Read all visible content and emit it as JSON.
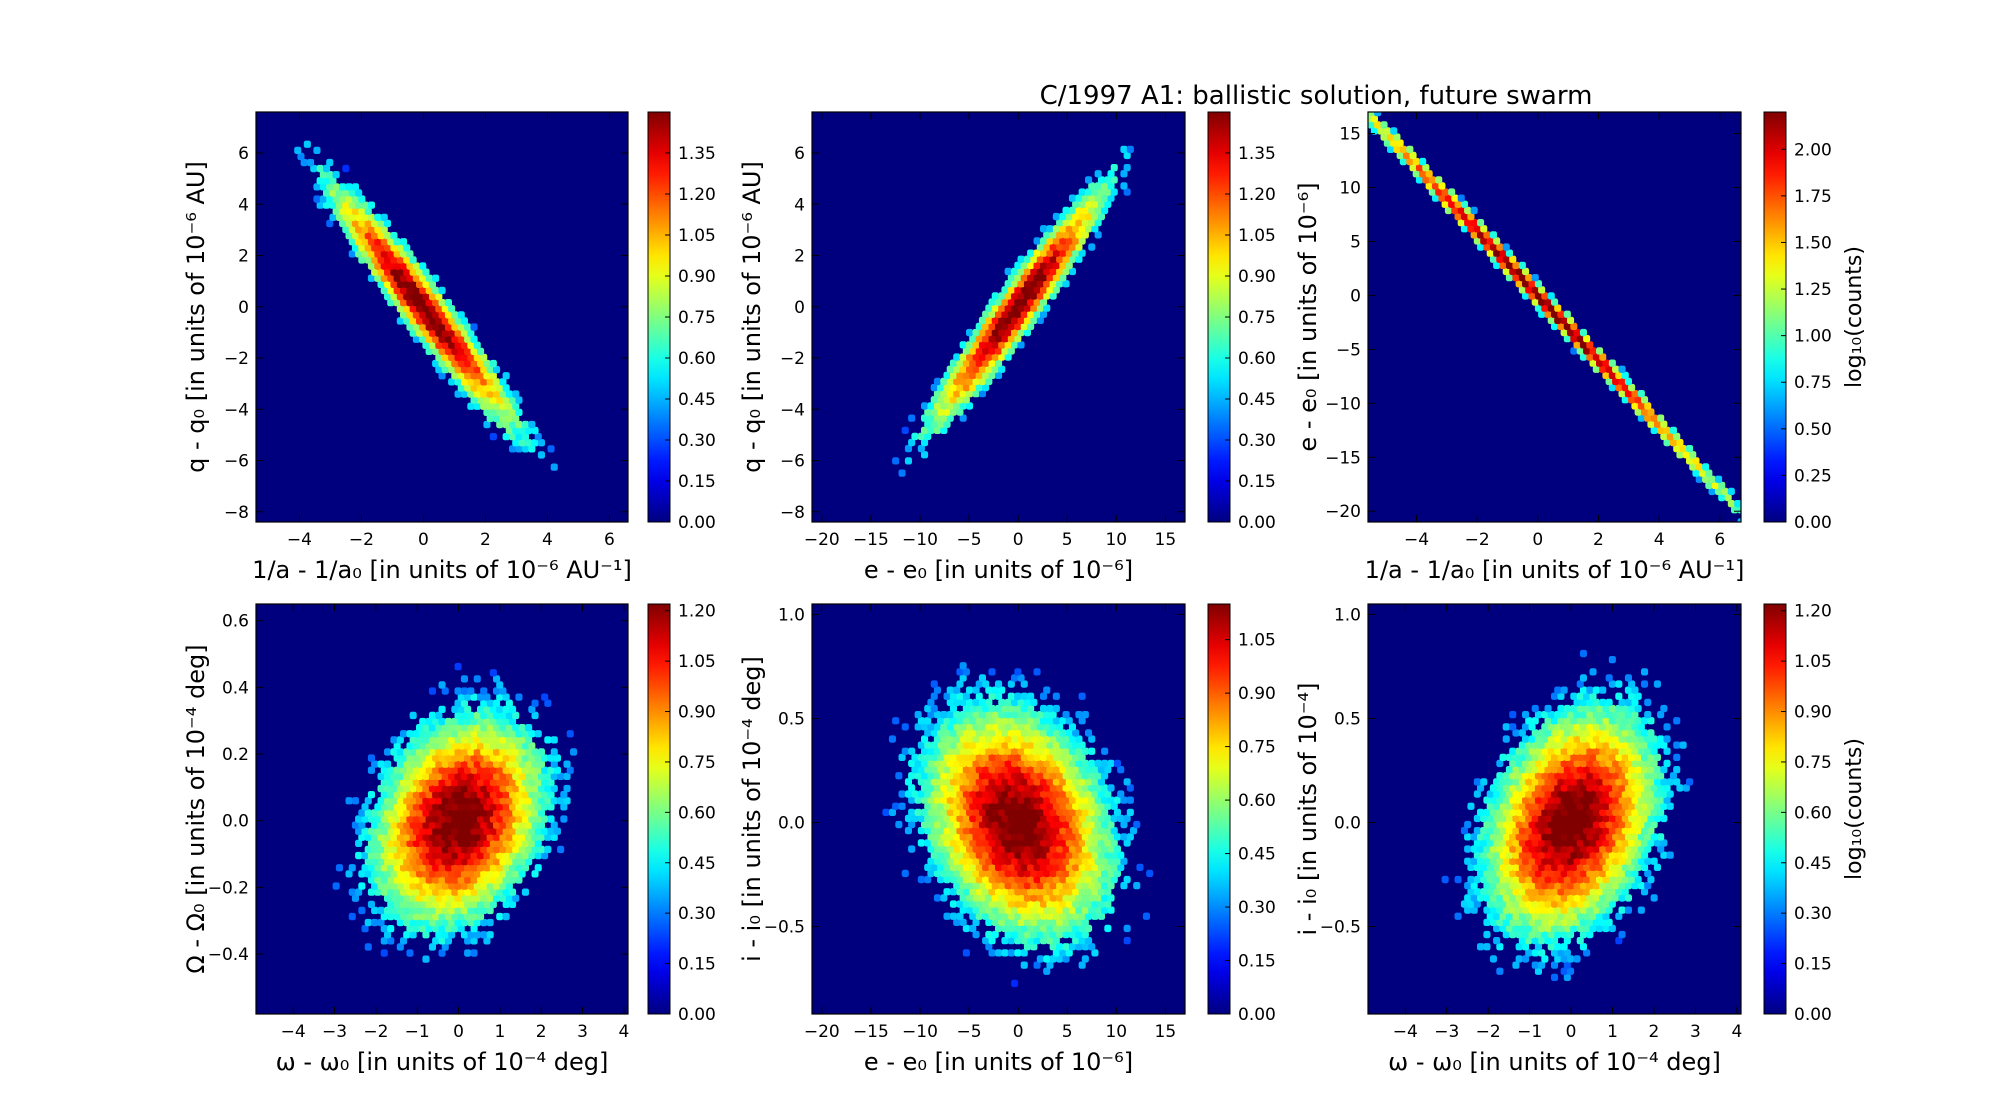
{
  "figure": {
    "title": "C/1997 A1:  ballistic solution, future swarm",
    "background": "#ffffff",
    "panel_background": "#00007f",
    "colormap": "jet"
  },
  "chart_data": [
    {
      "type": "heatmap",
      "bin_style": "hexbin",
      "xlabel": "1/a - 1/a₀ [in units of 10⁻⁶ AU⁻¹]",
      "ylabel": "q - q₀ [in units of 10⁻⁶ AU]",
      "xlim": [
        -5.4,
        6.6
      ],
      "ylim": [
        -8.4,
        7.6
      ],
      "xticks": [
        "−4",
        "−2",
        "0",
        "2",
        "4",
        "6"
      ],
      "xtick_values": [
        -4,
        -2,
        0,
        2,
        4,
        6
      ],
      "yticks": [
        "−8",
        "−6",
        "−4",
        "−2",
        "0",
        "2",
        "4",
        "6"
      ],
      "ytick_values": [
        -8,
        -6,
        -4,
        -2,
        0,
        2,
        4,
        6
      ],
      "distribution": {
        "center": [
          0,
          0
        ],
        "sigma": [
          1.6,
          2.5
        ],
        "correlation": -0.96
      },
      "colorbar": {
        "label": "",
        "range": [
          0.0,
          1.5
        ],
        "ticks": [
          "0.00",
          "0.15",
          "0.30",
          "0.45",
          "0.60",
          "0.75",
          "0.90",
          "1.05",
          "1.20",
          "1.35"
        ]
      }
    },
    {
      "type": "heatmap",
      "bin_style": "hexbin",
      "xlabel": "e - e₀ [in units of 10⁻⁶]",
      "ylabel": "q - q₀ [in units of 10⁻⁶ AU]",
      "xlim": [
        -21,
        17
      ],
      "ylim": [
        -8.4,
        7.6
      ],
      "xticks": [
        "−20",
        "−15",
        "−10",
        "−5",
        "0",
        "5",
        "10",
        "15"
      ],
      "xtick_values": [
        -20,
        -15,
        -10,
        -5,
        0,
        5,
        10,
        15
      ],
      "yticks": [
        "−8",
        "−6",
        "−4",
        "−2",
        "0",
        "2",
        "4",
        "6"
      ],
      "ytick_values": [
        -8,
        -6,
        -4,
        -2,
        0,
        2,
        4,
        6
      ],
      "distribution": {
        "center": [
          0,
          0
        ],
        "sigma": [
          4.8,
          2.5
        ],
        "correlation": 0.96
      },
      "colorbar": {
        "label": "",
        "range": [
          0.0,
          1.5
        ],
        "ticks": [
          "0.00",
          "0.15",
          "0.30",
          "0.45",
          "0.60",
          "0.75",
          "0.90",
          "1.05",
          "1.20",
          "1.35"
        ]
      }
    },
    {
      "type": "heatmap",
      "bin_style": "hexbin",
      "xlabel": "1/a - 1/a₀ [in units of 10⁻⁶ AU⁻¹]",
      "ylabel": "e - e₀ [in units of 10⁻⁶]",
      "xlim": [
        -5.6,
        6.7
      ],
      "ylim": [
        -21,
        17
      ],
      "xticks": [
        "−4",
        "−2",
        "0",
        "2",
        "4",
        "6"
      ],
      "xtick_values": [
        -4,
        -2,
        0,
        2,
        4,
        6
      ],
      "yticks": [
        "−20",
        "−15",
        "−10",
        "−5",
        "0",
        "5",
        "10",
        "15"
      ],
      "ytick_values": [
        -20,
        -15,
        -10,
        -5,
        0,
        5,
        10,
        15
      ],
      "distribution": {
        "center": [
          0,
          0
        ],
        "sigma": [
          1.6,
          4.8
        ],
        "correlation": -0.9995
      },
      "colorbar": {
        "label": "log₁₀(counts)",
        "range": [
          0.0,
          2.2
        ],
        "ticks": [
          "0.00",
          "0.25",
          "0.50",
          "0.75",
          "1.00",
          "1.25",
          "1.50",
          "1.75",
          "2.00"
        ]
      }
    },
    {
      "type": "heatmap",
      "bin_style": "hexbin",
      "xlabel": "ω - ω₀ [in units of 10⁻⁴ deg]",
      "ylabel": "Ω - Ω₀ [in units of 10⁻⁴ deg]",
      "xlim": [
        -4.9,
        4.1
      ],
      "ylim": [
        -0.58,
        0.65
      ],
      "xticks": [
        "−4",
        "−3",
        "−2",
        "−1",
        "0",
        "1",
        "2",
        "3",
        "4"
      ],
      "xtick_values": [
        -4,
        -3,
        -2,
        -1,
        0,
        1,
        2,
        3,
        4
      ],
      "yticks": [
        "−0.4",
        "−0.2",
        "0.0",
        "0.2",
        "0.4",
        "0.6"
      ],
      "ytick_values": [
        -0.4,
        -0.2,
        0.0,
        0.2,
        0.4,
        0.6
      ],
      "distribution": {
        "center": [
          0,
          0
        ],
        "sigma": [
          1.05,
          0.16
        ],
        "correlation": 0.25
      },
      "colorbar": {
        "label": "",
        "range": [
          0.0,
          1.22
        ],
        "ticks": [
          "0.00",
          "0.15",
          "0.30",
          "0.45",
          "0.60",
          "0.75",
          "0.90",
          "1.05",
          "1.20"
        ]
      }
    },
    {
      "type": "heatmap",
      "bin_style": "hexbin",
      "xlabel": "e - e₀ [in units of 10⁻⁶]",
      "ylabel": "i - i₀ [in units of 10⁻⁴ deg]",
      "xlim": [
        -21,
        17
      ],
      "ylim": [
        -0.92,
        1.05
      ],
      "xticks": [
        "−20",
        "−15",
        "−10",
        "−5",
        "0",
        "5",
        "10",
        "15"
      ],
      "xtick_values": [
        -20,
        -15,
        -10,
        -5,
        0,
        5,
        10,
        15
      ],
      "yticks": [
        "−0.5",
        "0.0",
        "0.5",
        "1.0"
      ],
      "ytick_values": [
        -0.5,
        0.0,
        0.5,
        1.0
      ],
      "distribution": {
        "center": [
          0,
          0
        ],
        "sigma": [
          4.8,
          0.28
        ],
        "correlation": -0.25
      },
      "colorbar": {
        "label": "",
        "range": [
          0.0,
          1.15
        ],
        "ticks": [
          "0.00",
          "0.15",
          "0.30",
          "0.45",
          "0.60",
          "0.75",
          "0.90",
          "1.05"
        ]
      }
    },
    {
      "type": "heatmap",
      "bin_style": "hexbin",
      "xlabel": "ω - ω₀ [in units of 10⁻⁴ deg]",
      "ylabel": "i - i₀ [in units of 10⁻⁴]",
      "xlim": [
        -4.9,
        4.1
      ],
      "ylim": [
        -0.92,
        1.05
      ],
      "xticks": [
        "−4",
        "−3",
        "−2",
        "−1",
        "0",
        "1",
        "2",
        "3",
        "4"
      ],
      "xtick_values": [
        -4,
        -3,
        -2,
        -1,
        0,
        1,
        2,
        3,
        4
      ],
      "yticks": [
        "−0.5",
        "0.0",
        "0.5",
        "1.0"
      ],
      "ytick_values": [
        -0.5,
        0.0,
        0.5,
        1.0
      ],
      "distribution": {
        "center": [
          0,
          0
        ],
        "sigma": [
          1.05,
          0.28
        ],
        "correlation": 0.3
      },
      "colorbar": {
        "label": "log₁₀(counts)",
        "range": [
          0.0,
          1.22
        ],
        "ticks": [
          "0.00",
          "0.15",
          "0.30",
          "0.45",
          "0.60",
          "0.75",
          "0.90",
          "1.05",
          "1.20"
        ]
      }
    }
  ]
}
